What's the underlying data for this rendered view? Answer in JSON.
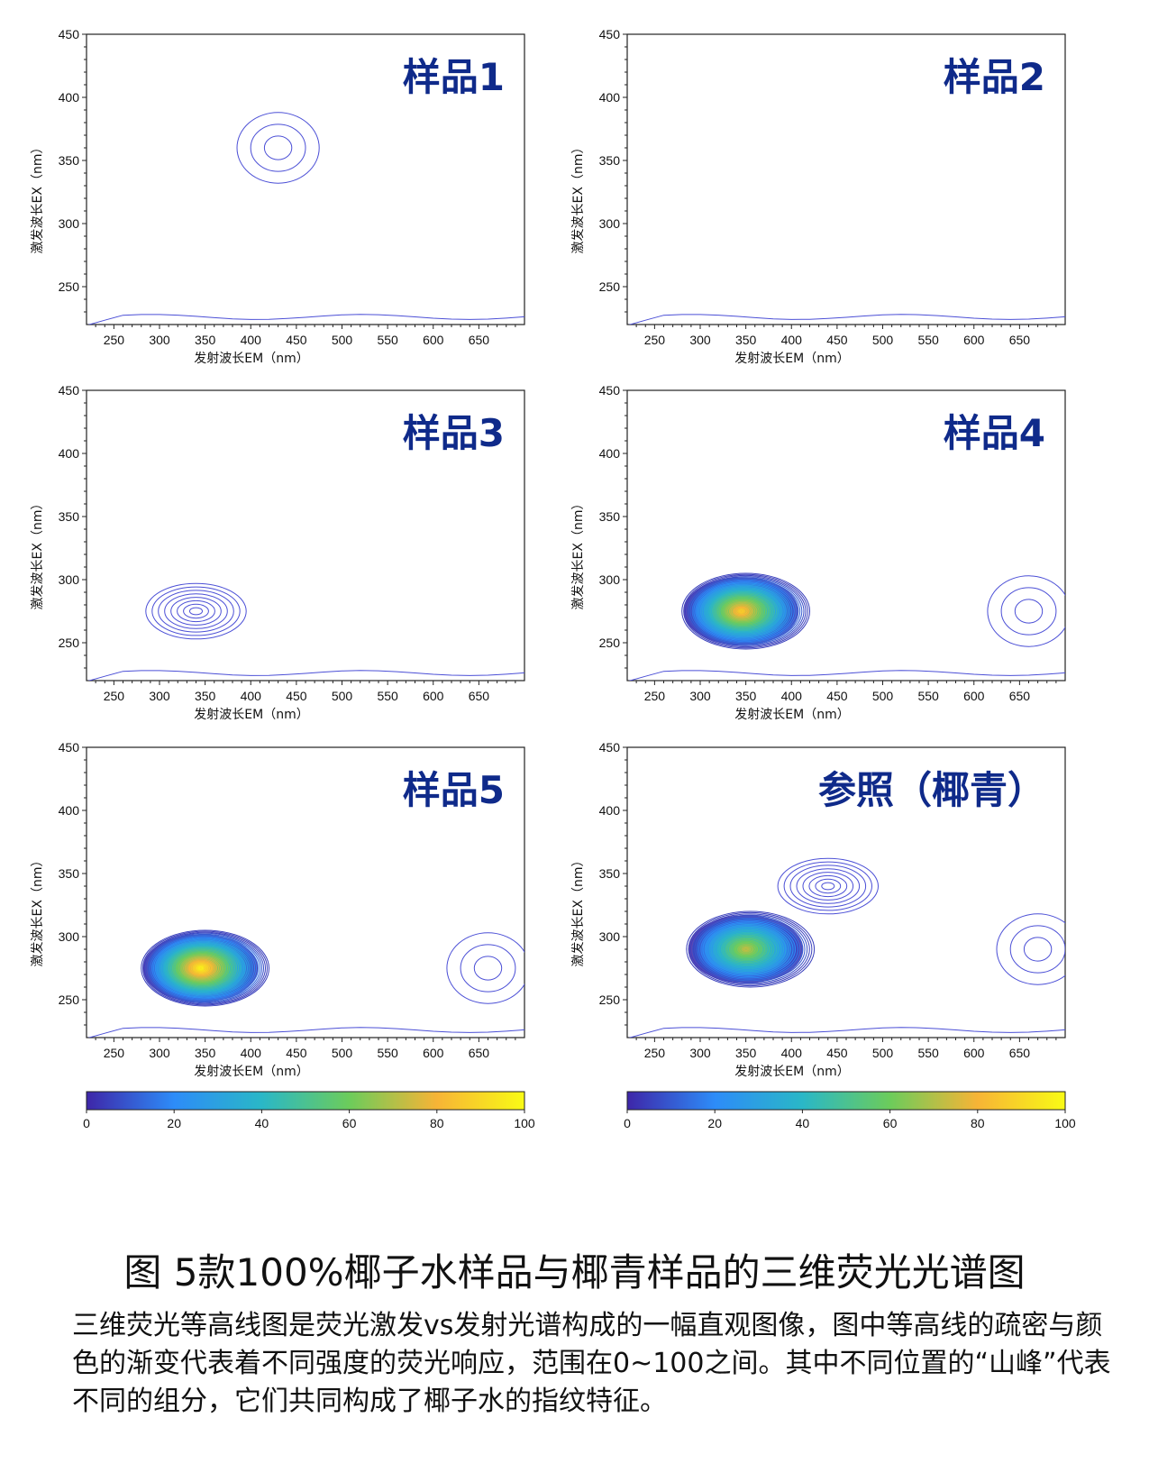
{
  "figure": {
    "caption": "图  5款100%椰子水样品与椰青样品的三维荧光光谱图",
    "description": "三维荧光等高线图是荧光激发vs发射光谱构成的一幅直观图像，图中等高线的疏密与颜色的渐变代表着不同强度的荧光响应，范围在0~100之间。其中不同位置的“山峰”代表不同的组分，它们共同构成了椰子水的指纹特征。"
  },
  "colors": {
    "contour_line": "#4b4fd6",
    "title_text": "#0f2a8a",
    "colormap": [
      "#3e26a8",
      "#2d8cf8",
      "#2ab7c7",
      "#6ccc5b",
      "#f7b436",
      "#f9fb15"
    ]
  },
  "chart_data": [
    {
      "type": "contour",
      "title": "样品1",
      "xlabel": "发射波长EM（nm）",
      "ylabel": "激发波长EX（nm）",
      "xlim": [
        220,
        700
      ],
      "ylim": [
        220,
        450
      ],
      "xticks": [
        "250",
        "300",
        "350",
        "400",
        "450",
        "500",
        "550",
        "600",
        "650"
      ],
      "yticks": [
        "250",
        "300",
        "350",
        "400",
        "450"
      ],
      "peaks": [
        {
          "ex": 360,
          "em": 430,
          "relative_intensity": 8
        }
      ]
    },
    {
      "type": "contour",
      "title": "样品2",
      "xlabel": "发射波长EM（nm）",
      "ylabel": "激发波长EX（nm）",
      "xlim": [
        220,
        700
      ],
      "ylim": [
        220,
        450
      ],
      "xticks": [
        "250",
        "300",
        "350",
        "400",
        "450",
        "500",
        "550",
        "600",
        "650"
      ],
      "yticks": [
        "250",
        "300",
        "350",
        "400",
        "450"
      ],
      "peaks": []
    },
    {
      "type": "contour",
      "title": "样品3",
      "xlabel": "发射波长EM（nm）",
      "ylabel": "激发波长EX（nm）",
      "xlim": [
        220,
        700
      ],
      "ylim": [
        220,
        450
      ],
      "xticks": [
        "250",
        "300",
        "350",
        "400",
        "450",
        "500",
        "550",
        "600",
        "650"
      ],
      "yticks": [
        "250",
        "300",
        "350",
        "400",
        "450"
      ],
      "peaks": [
        {
          "ex": 275,
          "em": 340,
          "relative_intensity": 20
        }
      ]
    },
    {
      "type": "contour",
      "title": "样品4",
      "xlabel": "发射波长EM（nm）",
      "ylabel": "激发波长EX（nm）",
      "xlim": [
        220,
        700
      ],
      "ylim": [
        220,
        450
      ],
      "xticks": [
        "250",
        "300",
        "350",
        "400",
        "450",
        "500",
        "550",
        "600",
        "650"
      ],
      "yticks": [
        "250",
        "300",
        "350",
        "400",
        "450"
      ],
      "peaks": [
        {
          "ex": 275,
          "em": 345,
          "relative_intensity": 90
        },
        {
          "ex": 275,
          "em": 660,
          "relative_intensity": 8
        }
      ]
    },
    {
      "type": "contour",
      "title": "样品5",
      "xlabel": "发射波长EM（nm）",
      "ylabel": "激发波长EX（nm）",
      "xlim": [
        220,
        700
      ],
      "ylim": [
        220,
        450
      ],
      "xticks": [
        "250",
        "300",
        "350",
        "400",
        "450",
        "500",
        "550",
        "600",
        "650"
      ],
      "yticks": [
        "250",
        "300",
        "350",
        "400",
        "450"
      ],
      "peaks": [
        {
          "ex": 275,
          "em": 345,
          "relative_intensity": 100
        },
        {
          "ex": 275,
          "em": 660,
          "relative_intensity": 8
        }
      ]
    },
    {
      "type": "contour",
      "title": "参照（椰青）",
      "xlabel": "发射波长EM（nm）",
      "ylabel": "激发波长EX（nm）",
      "xlim": [
        220,
        700
      ],
      "ylim": [
        220,
        450
      ],
      "xticks": [
        "250",
        "300",
        "350",
        "400",
        "450",
        "500",
        "550",
        "600",
        "650"
      ],
      "yticks": [
        "250",
        "300",
        "350",
        "400",
        "450"
      ],
      "peaks": [
        {
          "ex": 290,
          "em": 350,
          "relative_intensity": 75
        },
        {
          "ex": 340,
          "em": 440,
          "relative_intensity": 20
        },
        {
          "ex": 290,
          "em": 670,
          "relative_intensity": 8
        }
      ]
    }
  ],
  "colorbars": [
    {
      "min": 0,
      "max": 100,
      "ticks": [
        "0",
        "20",
        "40",
        "60",
        "80",
        "100"
      ]
    },
    {
      "min": 0,
      "max": 100,
      "ticks": [
        "0",
        "20",
        "40",
        "60",
        "80",
        "100"
      ]
    }
  ]
}
